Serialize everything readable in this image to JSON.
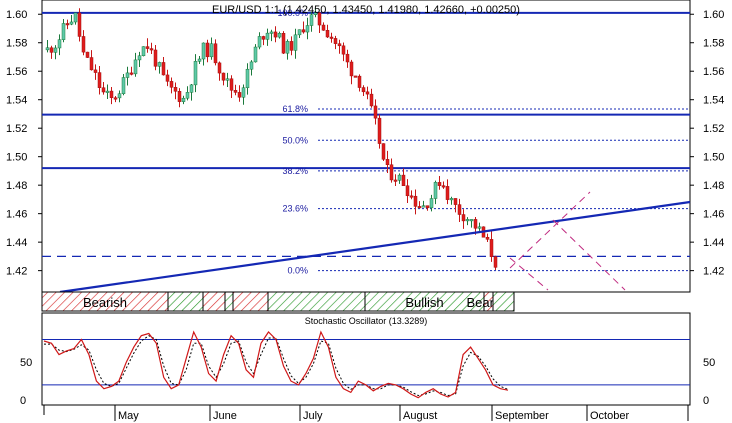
{
  "chart_data": {
    "type": "candlestick",
    "title": "EUR/USD 1:1 (1.42450, 1.43450, 1.41980, 1.42660, +0.00250)",
    "months": [
      "May",
      "June",
      "July",
      "August",
      "September",
      "October"
    ],
    "y_ticks": [
      "1.60",
      "1.58",
      "1.56",
      "1.54",
      "1.52",
      "1.50",
      "1.48",
      "1.46",
      "1.44",
      "1.42"
    ],
    "ylim": [
      1.405,
      1.61
    ],
    "fibonacci": [
      {
        "label": "100.0%",
        "value": 1.601
      },
      {
        "label": "61.8%",
        "value": 1.5335
      },
      {
        "label": "50.0%",
        "value": 1.5115
      },
      {
        "label": "38.2%",
        "value": 1.49
      },
      {
        "label": "23.6%",
        "value": 1.4635
      },
      {
        "label": "0.0%",
        "value": 1.42
      }
    ],
    "horizontal_levels": [
      1.601,
      1.5295,
      1.492
    ],
    "dashed_level": 1.43,
    "close_path": [
      1.575,
      1.58,
      1.592,
      1.6,
      1.57,
      1.56,
      1.545,
      1.54,
      1.548,
      1.56,
      1.575,
      1.578,
      1.565,
      1.55,
      1.545,
      1.54,
      1.56,
      1.575,
      1.575,
      1.56,
      1.548,
      1.545,
      1.56,
      1.58,
      1.59,
      1.587,
      1.575,
      1.58,
      1.592,
      1.598,
      1.593,
      1.585,
      1.575,
      1.563,
      1.555,
      1.54,
      1.52,
      1.49,
      1.487,
      1.482,
      1.47,
      1.465,
      1.472,
      1.485,
      1.47,
      1.462,
      1.457,
      1.45,
      1.44,
      1.426
    ],
    "bands": [
      {
        "label": "Bearish",
        "kind": "bearish"
      },
      {
        "label": "",
        "kind": "bullish"
      },
      {
        "label": "",
        "kind": "bearish"
      },
      {
        "label": "",
        "kind": "bullish"
      },
      {
        "label": "",
        "kind": "bearish"
      },
      {
        "label": "",
        "kind": "bullish"
      },
      {
        "label": "Bullish",
        "kind": "bullish"
      },
      {
        "label": "Bearish",
        "kind": "bearish"
      },
      {
        "label": "",
        "kind": "bullish"
      },
      {
        "label": "",
        "kind": "bearish"
      }
    ],
    "oscillator": {
      "title": "Stochastic Oscillator (13.3289)",
      "y_ticks": [
        "50",
        "0"
      ],
      "levels": [
        80,
        20
      ],
      "k_path": [
        78,
        75,
        60,
        65,
        68,
        80,
        60,
        25,
        15,
        18,
        25,
        50,
        70,
        85,
        88,
        75,
        30,
        15,
        20,
        55,
        90,
        70,
        35,
        25,
        60,
        85,
        75,
        40,
        30,
        75,
        90,
        80,
        45,
        25,
        20,
        35,
        55,
        90,
        70,
        30,
        15,
        10,
        25,
        20,
        12,
        18,
        22,
        20,
        15,
        8,
        3,
        10,
        15,
        8,
        4,
        10,
        60,
        70,
        55,
        40,
        20,
        15,
        13
      ],
      "d_path": [
        74,
        74,
        66,
        64,
        67,
        73,
        66,
        40,
        22,
        18,
        22,
        42,
        62,
        78,
        85,
        80,
        45,
        22,
        20,
        40,
        75,
        75,
        45,
        30,
        48,
        75,
        78,
        50,
        35,
        60,
        82,
        82,
        55,
        32,
        22,
        30,
        48,
        78,
        75,
        42,
        22,
        14,
        20,
        20,
        15,
        15,
        20,
        20,
        17,
        11,
        6,
        8,
        12,
        10,
        6,
        8,
        45,
        63,
        58,
        45,
        28,
        18,
        14
      ]
    }
  }
}
